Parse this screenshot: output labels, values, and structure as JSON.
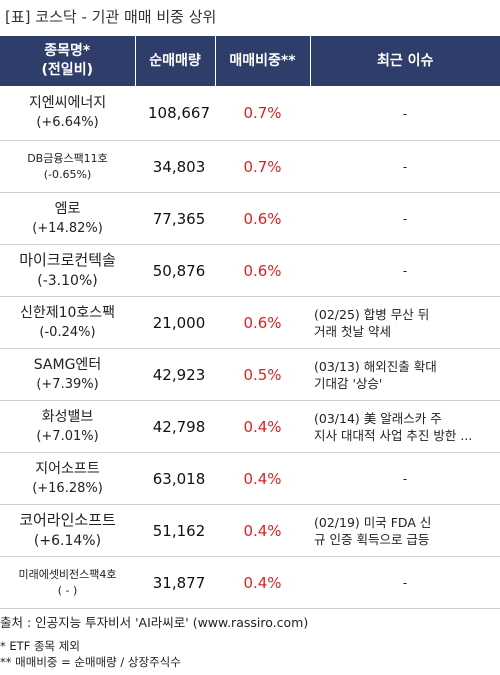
{
  "title": "[표] 코스닥 - 기관 매매 비중 상위",
  "header": {
    "col1_line1": "종목명*",
    "col1_line2": "(전일비)",
    "col2": "순매매량",
    "col3": "매매비중**",
    "col4": "최근 이슈"
  },
  "rows": [
    {
      "name": "지엔씨에너지",
      "change": "(+6.64%)",
      "volume": "108,667",
      "ratio": "0.7%",
      "issue1": "-",
      "issue2": ""
    },
    {
      "name": "DB금융스팩11호",
      "change": "(-0.65%)",
      "volume": "34,803",
      "ratio": "0.7%",
      "issue1": "-",
      "issue2": ""
    },
    {
      "name": "엠로",
      "change": "(+14.82%)",
      "volume": "77,365",
      "ratio": "0.6%",
      "issue1": "-",
      "issue2": ""
    },
    {
      "name": "마이크로컨텍솔",
      "change": "(-3.10%)",
      "volume": "50,876",
      "ratio": "0.6%",
      "issue1": "-",
      "issue2": ""
    },
    {
      "name": "신한제10호스팩",
      "change": "(-0.24%)",
      "volume": "21,000",
      "ratio": "0.6%",
      "issue1": "(02/25) 합병 무산 뒤",
      "issue2": "거래 첫날 약세"
    },
    {
      "name": "SAMG엔터",
      "change": "(+7.39%)",
      "volume": "42,923",
      "ratio": "0.5%",
      "issue1": "(03/13) 해외진출 확대",
      "issue2": "기대감 '상승'"
    },
    {
      "name": "화성밸브",
      "change": "(+7.01%)",
      "volume": "42,798",
      "ratio": "0.4%",
      "issue1": "(03/14) 美 알래스카 주",
      "issue2": "지사 대대적 사업 추진 방한 ..."
    },
    {
      "name": "지어소프트",
      "change": "(+16.28%)",
      "volume": "63,018",
      "ratio": "0.4%",
      "issue1": "-",
      "issue2": ""
    },
    {
      "name": "코어라인소프트",
      "change": "(+6.14%)",
      "volume": "51,162",
      "ratio": "0.4%",
      "issue1": "(02/19) 미국 FDA 신",
      "issue2": "규 인증 획득으로 급등"
    },
    {
      "name": "미래에셋비전스팩4호",
      "change": "( - )",
      "volume": "31,877",
      "ratio": "0.4%",
      "issue1": "-",
      "issue2": ""
    }
  ],
  "footer": {
    "source": "출처 : 인공지능 투자비서 'AI라씨로' (www.rassiro.com)",
    "note1": "* ETF 종목 제외",
    "note2": "** 매매비중 = 순매매량 / 상장주식수"
  },
  "colors": {
    "header_bg": "#2f3d6b",
    "ratio_text": "#e02020"
  }
}
